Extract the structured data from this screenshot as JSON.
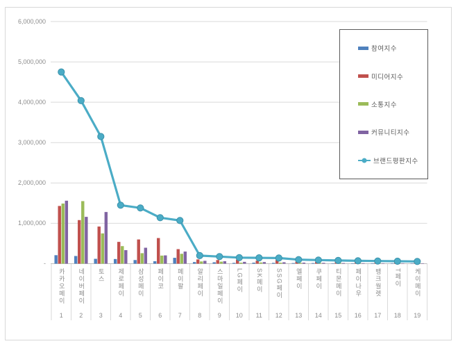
{
  "chart_data": {
    "type": "bar",
    "combo": "grouped bars + line overlay",
    "title": "",
    "categories": [
      "카카오페이",
      "네이버페이",
      "토스",
      "제로페이",
      "삼성페이",
      "페이코",
      "페이팔",
      "알리페이",
      "스마일페이",
      "LG페이",
      "SK페이",
      "SSG페이",
      "엘페이",
      "쿠페이",
      "티몬페이",
      "페이나우",
      "뱅크월렛",
      "T페이",
      "케이페이"
    ],
    "category_numbers": [
      "1",
      "2",
      "3",
      "4",
      "5",
      "6",
      "7",
      "8",
      "9",
      "10",
      "11",
      "12",
      "13",
      "14",
      "15",
      "16",
      "17",
      "18",
      "19"
    ],
    "series": [
      {
        "name": "참여지수",
        "type": "bar",
        "color": "#4F81BD",
        "values": [
          210000,
          190000,
          120000,
          115000,
          90000,
          60000,
          145000,
          40000,
          35000,
          20000,
          25000,
          20000,
          15000,
          15000,
          10000,
          10000,
          8000,
          6000,
          5000
        ]
      },
      {
        "name": "미디어지수",
        "type": "bar",
        "color": "#C0504D",
        "values": [
          1430000,
          1080000,
          920000,
          540000,
          600000,
          635000,
          360000,
          105000,
          90000,
          100000,
          75000,
          90000,
          50000,
          45000,
          40000,
          35000,
          30000,
          25000,
          20000
        ]
      },
      {
        "name": "소통지수",
        "type": "bar",
        "color": "#9BBB59",
        "values": [
          1490000,
          1550000,
          750000,
          435000,
          260000,
          200000,
          245000,
          55000,
          50000,
          25000,
          30000,
          25000,
          20000,
          15000,
          15000,
          10000,
          10000,
          8000,
          8000
        ]
      },
      {
        "name": "커뮤니티지수",
        "type": "bar",
        "color": "#8064A2",
        "values": [
          1560000,
          1160000,
          1280000,
          335000,
          395000,
          205000,
          300000,
          70000,
          60000,
          45000,
          40000,
          35000,
          25000,
          20000,
          15000,
          12000,
          10000,
          8000,
          8000
        ]
      },
      {
        "name": "브랜드평판지수",
        "type": "line",
        "color": "#4BACC6",
        "marker_edge_color": "#3A92AB",
        "values": [
          4750000,
          4040000,
          3150000,
          1450000,
          1380000,
          1140000,
          1070000,
          200000,
          175000,
          150000,
          145000,
          140000,
          100000,
          90000,
          80000,
          70000,
          65000,
          60000,
          55000
        ]
      }
    ],
    "ylim": [
      0,
      6000000
    ],
    "ytick_interval": 1000000,
    "ytick_labels": [
      "-",
      "1,000,000",
      "2,000,000",
      "3,000,000",
      "4,000,000",
      "5,000,000",
      "6,000,000"
    ],
    "grid": true,
    "gridline_color": "#d9d9d9",
    "axis_line_color": "#bfbfbf",
    "text_color": "#8c8c8c",
    "legend_position": "inside-top-right",
    "legend_border_color": "#595959"
  }
}
